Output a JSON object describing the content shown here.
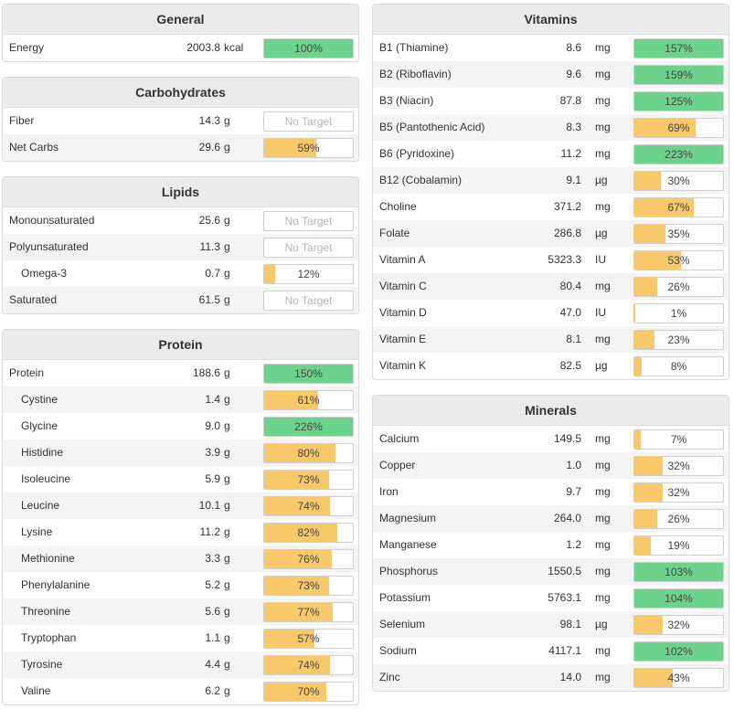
{
  "colors": {
    "green": "#6dd38c",
    "yellow": "#f7c96a"
  },
  "left_panels": [
    {
      "title": "General",
      "rows": [
        {
          "name": "Energy",
          "value": "2003.8",
          "unit": "kcal",
          "pct": 100,
          "label": "100%"
        }
      ]
    },
    {
      "title": "Carbohydrates",
      "rows": [
        {
          "name": "Fiber",
          "value": "14.3",
          "unit": "g",
          "pct": null,
          "label": "No Target"
        },
        {
          "name": "Net Carbs",
          "value": "29.6",
          "unit": "g",
          "pct": 59,
          "label": "59%"
        }
      ]
    },
    {
      "title": "Lipids",
      "rows": [
        {
          "name": "Monounsaturated",
          "value": "25.6",
          "unit": "g",
          "pct": null,
          "label": "No Target"
        },
        {
          "name": "Polyunsaturated",
          "value": "11.3",
          "unit": "g",
          "pct": null,
          "label": "No Target"
        },
        {
          "name": "Omega-3",
          "value": "0.7",
          "unit": "g",
          "pct": 12,
          "label": "12%",
          "indent": true
        },
        {
          "name": "Saturated",
          "value": "61.5",
          "unit": "g",
          "pct": null,
          "label": "No Target"
        }
      ]
    },
    {
      "title": "Protein",
      "rows": [
        {
          "name": "Protein",
          "value": "188.6",
          "unit": "g",
          "pct": 150,
          "label": "150%"
        },
        {
          "name": "Cystine",
          "value": "1.4",
          "unit": "g",
          "pct": 61,
          "label": "61%",
          "indent": true
        },
        {
          "name": "Glycine",
          "value": "9.0",
          "unit": "g",
          "pct": 226,
          "label": "226%",
          "indent": true
        },
        {
          "name": "Histidine",
          "value": "3.9",
          "unit": "g",
          "pct": 80,
          "label": "80%",
          "indent": true
        },
        {
          "name": "Isoleucine",
          "value": "5.9",
          "unit": "g",
          "pct": 73,
          "label": "73%",
          "indent": true
        },
        {
          "name": "Leucine",
          "value": "10.1",
          "unit": "g",
          "pct": 74,
          "label": "74%",
          "indent": true
        },
        {
          "name": "Lysine",
          "value": "11.2",
          "unit": "g",
          "pct": 82,
          "label": "82%",
          "indent": true
        },
        {
          "name": "Methionine",
          "value": "3.3",
          "unit": "g",
          "pct": 76,
          "label": "76%",
          "indent": true
        },
        {
          "name": "Phenylalanine",
          "value": "5.2",
          "unit": "g",
          "pct": 73,
          "label": "73%",
          "indent": true
        },
        {
          "name": "Threonine",
          "value": "5.6",
          "unit": "g",
          "pct": 77,
          "label": "77%",
          "indent": true
        },
        {
          "name": "Tryptophan",
          "value": "1.1",
          "unit": "g",
          "pct": 57,
          "label": "57%",
          "indent": true
        },
        {
          "name": "Tyrosine",
          "value": "4.4",
          "unit": "g",
          "pct": 74,
          "label": "74%",
          "indent": true
        },
        {
          "name": "Valine",
          "value": "6.2",
          "unit": "g",
          "pct": 70,
          "label": "70%",
          "indent": true
        }
      ]
    }
  ],
  "right_panels": [
    {
      "title": "Vitamins",
      "rows": [
        {
          "name": "B1 (Thiamine)",
          "value": "8.6",
          "unit": "mg",
          "pct": 157,
          "label": "157%"
        },
        {
          "name": "B2 (Riboflavin)",
          "value": "9.6",
          "unit": "mg",
          "pct": 159,
          "label": "159%"
        },
        {
          "name": "B3 (Niacin)",
          "value": "87.8",
          "unit": "mg",
          "pct": 125,
          "label": "125%"
        },
        {
          "name": "B5 (Pantothenic Acid)",
          "value": "8.3",
          "unit": "mg",
          "pct": 69,
          "label": "69%"
        },
        {
          "name": "B6 (Pyridoxine)",
          "value": "11.2",
          "unit": "mg",
          "pct": 223,
          "label": "223%"
        },
        {
          "name": "B12 (Cobalamin)",
          "value": "9.1",
          "unit": "µg",
          "pct": 30,
          "label": "30%"
        },
        {
          "name": "Choline",
          "value": "371.2",
          "unit": "mg",
          "pct": 67,
          "label": "67%"
        },
        {
          "name": "Folate",
          "value": "286.8",
          "unit": "µg",
          "pct": 35,
          "label": "35%"
        },
        {
          "name": "Vitamin A",
          "value": "5323.3",
          "unit": "IU",
          "pct": 53,
          "label": "53%"
        },
        {
          "name": "Vitamin C",
          "value": "80.4",
          "unit": "mg",
          "pct": 26,
          "label": "26%"
        },
        {
          "name": "Vitamin D",
          "value": "47.0",
          "unit": "IU",
          "pct": 1,
          "label": "1%"
        },
        {
          "name": "Vitamin E",
          "value": "8.1",
          "unit": "mg",
          "pct": 23,
          "label": "23%"
        },
        {
          "name": "Vitamin K",
          "value": "82.5",
          "unit": "µg",
          "pct": 8,
          "label": "8%"
        }
      ]
    },
    {
      "title": "Minerals",
      "rows": [
        {
          "name": "Calcium",
          "value": "149.5",
          "unit": "mg",
          "pct": 7,
          "label": "7%"
        },
        {
          "name": "Copper",
          "value": "1.0",
          "unit": "mg",
          "pct": 32,
          "label": "32%"
        },
        {
          "name": "Iron",
          "value": "9.7",
          "unit": "mg",
          "pct": 32,
          "label": "32%"
        },
        {
          "name": "Magnesium",
          "value": "264.0",
          "unit": "mg",
          "pct": 26,
          "label": "26%"
        },
        {
          "name": "Manganese",
          "value": "1.2",
          "unit": "mg",
          "pct": 19,
          "label": "19%"
        },
        {
          "name": "Phosphorus",
          "value": "1550.5",
          "unit": "mg",
          "pct": 103,
          "label": "103%"
        },
        {
          "name": "Potassium",
          "value": "5763.1",
          "unit": "mg",
          "pct": 104,
          "label": "104%"
        },
        {
          "name": "Selenium",
          "value": "98.1",
          "unit": "µg",
          "pct": 32,
          "label": "32%"
        },
        {
          "name": "Sodium",
          "value": "4117.1",
          "unit": "mg",
          "pct": 102,
          "label": "102%"
        },
        {
          "name": "Zinc",
          "value": "14.0",
          "unit": "mg",
          "pct": 43,
          "label": "43%"
        }
      ]
    }
  ]
}
